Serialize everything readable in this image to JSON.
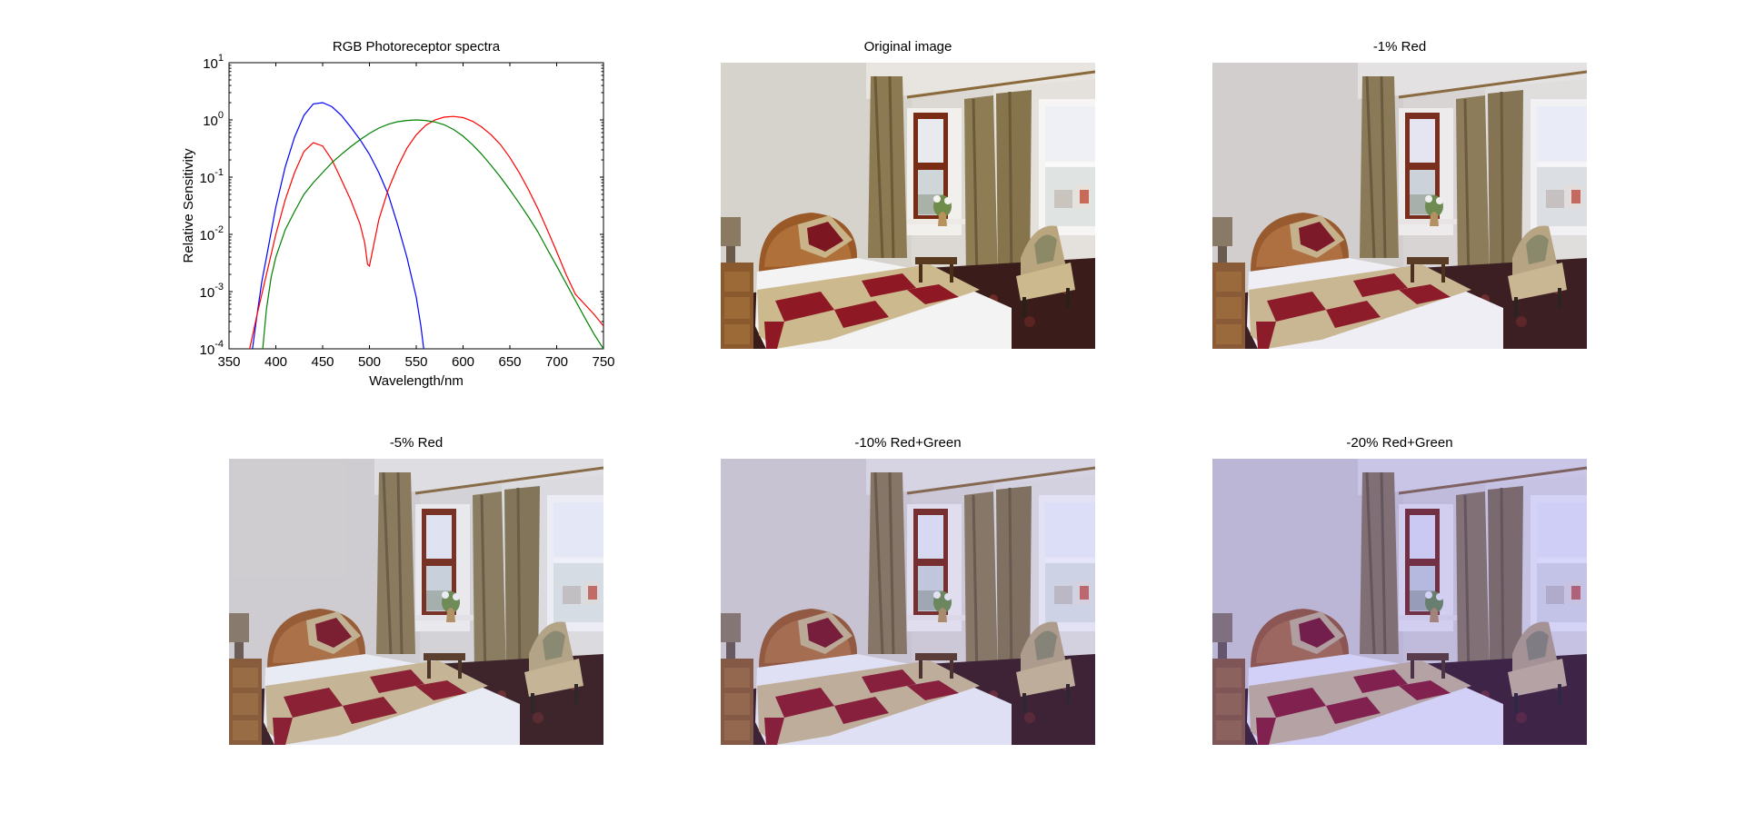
{
  "chart_data": {
    "type": "line",
    "title": "RGB Photoreceptor spectra",
    "xlabel": "Wavelength/nm",
    "ylabel": "Relative Sensitivity",
    "xlim": [
      350,
      750
    ],
    "ylim": [
      0.0001,
      10
    ],
    "yscale": "log",
    "grid": false,
    "x_ticks": [
      350,
      400,
      450,
      500,
      550,
      600,
      650,
      700,
      750
    ],
    "y_ticks": [
      {
        "value": 0.0001,
        "base": "10",
        "exp": "-4"
      },
      {
        "value": 0.001,
        "base": "10",
        "exp": "-3"
      },
      {
        "value": 0.01,
        "base": "10",
        "exp": "-2"
      },
      {
        "value": 0.1,
        "base": "10",
        "exp": "-1"
      },
      {
        "value": 1,
        "base": "10",
        "exp": "0"
      },
      {
        "value": 10,
        "base": "10",
        "exp": "1"
      }
    ],
    "series": [
      {
        "color": "#0000ff",
        "x": [
          375,
          380,
          385,
          390,
          400,
          410,
          420,
          430,
          440,
          450,
          460,
          470,
          480,
          490,
          500,
          510,
          520,
          530,
          540,
          550,
          555,
          558
        ],
        "y": [
          0.0001,
          0.0004,
          0.0015,
          0.004,
          0.03,
          0.15,
          0.5,
          1.2,
          1.9,
          2.0,
          1.7,
          1.2,
          0.75,
          0.45,
          0.25,
          0.12,
          0.05,
          0.015,
          0.004,
          0.0008,
          0.00025,
          0.0001
        ]
      },
      {
        "color": "#ff0000",
        "x": [
          372,
          380,
          390,
          400,
          410,
          420,
          430,
          440,
          450,
          460,
          470,
          480,
          490,
          495,
          498,
          500,
          505,
          510,
          520,
          530,
          540,
          550,
          560,
          570,
          580,
          590,
          600,
          610,
          620,
          630,
          640,
          650,
          660,
          670,
          680,
          690,
          700,
          710,
          720,
          730,
          740,
          750
        ],
        "y": [
          0.0001,
          0.0004,
          0.002,
          0.01,
          0.04,
          0.12,
          0.28,
          0.4,
          0.35,
          0.2,
          0.09,
          0.04,
          0.015,
          0.007,
          0.003,
          0.0028,
          0.007,
          0.018,
          0.06,
          0.15,
          0.32,
          0.55,
          0.8,
          1.0,
          1.12,
          1.15,
          1.1,
          0.95,
          0.75,
          0.55,
          0.37,
          0.22,
          0.12,
          0.06,
          0.028,
          0.012,
          0.005,
          0.002,
          0.0009,
          0.0006,
          0.0004,
          0.00025
        ]
      },
      {
        "color": "#008000",
        "x": [
          386,
          390,
          395,
          400,
          410,
          420,
          430,
          440,
          450,
          460,
          470,
          480,
          490,
          500,
          510,
          520,
          530,
          540,
          550,
          560,
          570,
          580,
          590,
          600,
          610,
          620,
          630,
          640,
          650,
          660,
          670,
          680,
          690,
          700,
          710,
          720,
          730,
          740,
          750
        ],
        "y": [
          0.0001,
          0.0005,
          0.0018,
          0.004,
          0.012,
          0.025,
          0.05,
          0.08,
          0.12,
          0.18,
          0.25,
          0.34,
          0.45,
          0.58,
          0.72,
          0.84,
          0.93,
          0.98,
          1.0,
          0.98,
          0.92,
          0.82,
          0.68,
          0.52,
          0.37,
          0.25,
          0.16,
          0.1,
          0.06,
          0.035,
          0.02,
          0.011,
          0.0055,
          0.0028,
          0.0014,
          0.0007,
          0.00035,
          0.00018,
          0.0001
        ]
      }
    ]
  },
  "panels": [
    {
      "title": "Original image",
      "tint": "rgba(255,255,255,0)"
    },
    {
      "title": "-1% Red",
      "tint": "rgba(120,140,255,0.04)"
    },
    {
      "title": "-5% Red",
      "tint": "rgba(120,140,255,0.08)"
    },
    {
      "title": "-10% Red+Green",
      "tint": "rgba(90,90,255,0.12)"
    },
    {
      "title": "-20% Red+Green",
      "tint": "rgba(80,70,255,0.20)"
    }
  ]
}
